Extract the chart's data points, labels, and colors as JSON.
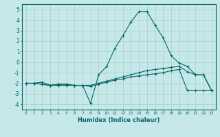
{
  "xlabel": "Humidex (Indice chaleur)",
  "ylabel": "",
  "xlim": [
    -0.5,
    23.5
  ],
  "ylim": [
    -4.5,
    5.5
  ],
  "xticks": [
    0,
    1,
    2,
    3,
    4,
    5,
    6,
    7,
    8,
    9,
    10,
    11,
    12,
    13,
    14,
    15,
    16,
    17,
    18,
    19,
    20,
    21,
    22,
    23
  ],
  "yticks": [
    -4,
    -3,
    -2,
    -1,
    0,
    1,
    2,
    3,
    4,
    5
  ],
  "bg_color": "#c6e8e8",
  "line_color": "#006666",
  "grid_color": "#a8cccc",
  "line1_y": [
    -2.0,
    -2.0,
    -2.1,
    -2.2,
    -2.1,
    -2.1,
    -2.2,
    -2.2,
    -3.9,
    -1.2,
    -0.4,
    1.3,
    2.5,
    3.8,
    4.8,
    4.8,
    3.5,
    2.3,
    0.6,
    -0.1,
    -0.4,
    -1.2,
    -1.2,
    -2.7
  ],
  "line2_y": [
    -2.0,
    -2.0,
    -1.9,
    -2.2,
    -2.2,
    -2.2,
    -2.2,
    -2.2,
    -2.2,
    -2.0,
    -1.8,
    -1.6,
    -1.4,
    -1.2,
    -1.0,
    -0.8,
    -0.7,
    -0.6,
    -0.5,
    -0.4,
    -0.9,
    -1.2,
    -1.2,
    -2.7
  ],
  "line3_y": [
    -2.0,
    -2.0,
    -2.1,
    -2.2,
    -2.1,
    -2.1,
    -2.2,
    -2.2,
    -2.3,
    -2.1,
    -1.9,
    -1.7,
    -1.6,
    -1.4,
    -1.3,
    -1.2,
    -1.1,
    -1.0,
    -0.8,
    -0.7,
    -2.7,
    -2.7,
    -2.7,
    -2.7
  ]
}
